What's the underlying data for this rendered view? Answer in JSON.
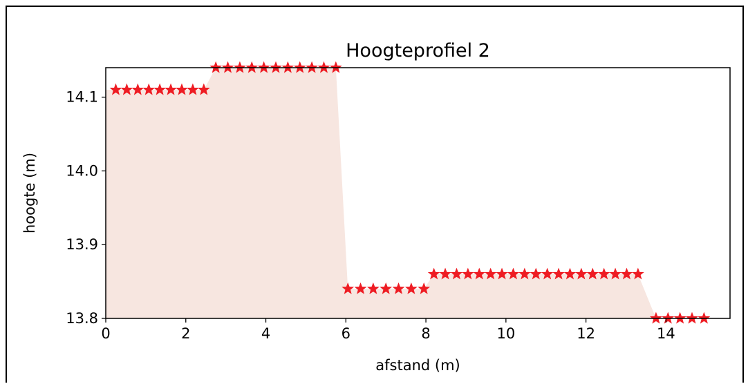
{
  "chart_data": {
    "type": "line",
    "title": "Hoogteprofiel 2",
    "xlabel": "afstand (m)",
    "ylabel": "hoogte (m)",
    "xlim": [
      0,
      15.6
    ],
    "ylim": [
      13.8,
      14.14
    ],
    "xticks": [
      0,
      2,
      4,
      6,
      8,
      10,
      12,
      14
    ],
    "yticks": [
      13.8,
      13.9,
      14.0,
      14.1
    ],
    "ytick_labels": [
      "13.8",
      "13.9",
      "14.0",
      "14.1"
    ],
    "grid": false,
    "fill_color": "#f7e6e0",
    "marker": "star",
    "marker_color": "#ee1c23",
    "series": [
      {
        "segments": [
          {
            "x_start": 0.25,
            "x_end": 2.45,
            "count": 9,
            "y": 14.11
          },
          {
            "x_start": 2.75,
            "x_end": 5.75,
            "count": 11,
            "y": 14.14
          },
          {
            "x_start": 6.05,
            "x_end": 7.95,
            "count": 7,
            "y": 13.84
          },
          {
            "x_start": 8.2,
            "x_end": 13.3,
            "count": 19,
            "y": 13.86
          },
          {
            "x_start": 13.75,
            "x_end": 14.95,
            "count": 5,
            "y": 13.8
          }
        ]
      }
    ]
  }
}
